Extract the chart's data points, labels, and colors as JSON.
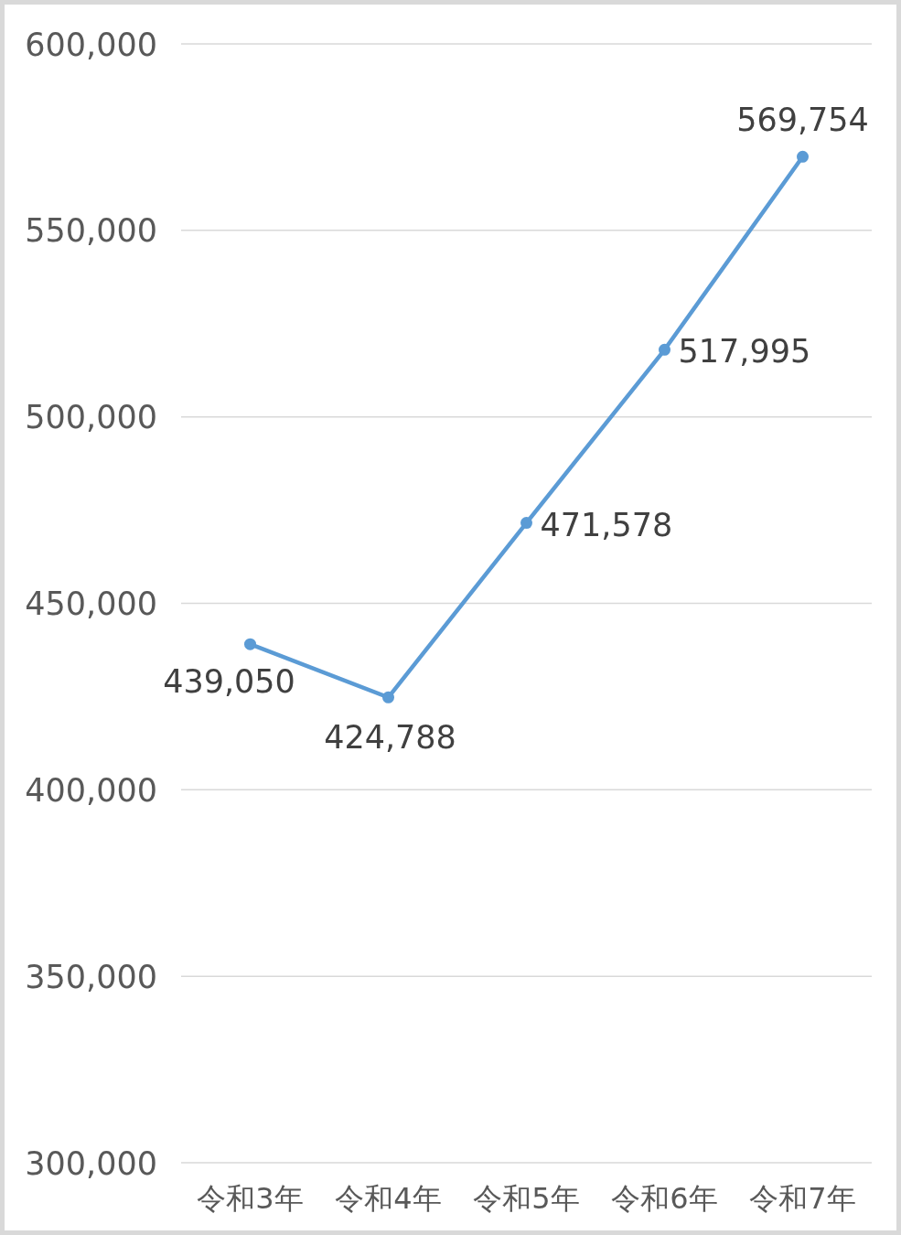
{
  "chart_data": {
    "type": "line",
    "categories": [
      "令和3年",
      "令和4年",
      "令和5年",
      "令和6年",
      "令和7年"
    ],
    "values": [
      439050,
      424788,
      471578,
      517995,
      569754
    ],
    "value_labels": [
      "439,050",
      "424,788",
      "471,578",
      "517,995",
      "569,754"
    ],
    "color": "#5b9bd5",
    "marker": "circle",
    "line_style": "solid",
    "ylim": [
      300000,
      600000
    ],
    "yticks": [
      {
        "value": 300000,
        "label": "300,000"
      },
      {
        "value": 350000,
        "label": "350,000"
      },
      {
        "value": 400000,
        "label": "400,000"
      },
      {
        "value": 450000,
        "label": "450,000"
      },
      {
        "value": 500000,
        "label": "500,000"
      },
      {
        "value": 550000,
        "label": "550,000"
      },
      {
        "value": 600000,
        "label": "600,000"
      }
    ],
    "grid": "y"
  }
}
